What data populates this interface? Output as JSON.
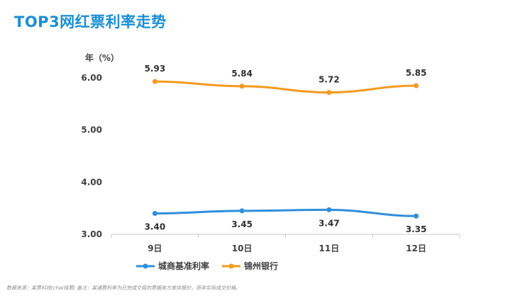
{
  "page": {
    "title": "TOP3网红票利率走势",
    "source": "数据来源：某票科技(chai找票) 备注：某通票利率为已完成交易的票据卖方库存报价，而非实际成交价格。"
  },
  "chart_data": {
    "type": "line",
    "title": "TOP3网红票利率走势",
    "ylabel": "年（%）",
    "xlabel": "",
    "categories": [
      "9日",
      "10日",
      "11日",
      "12日"
    ],
    "ylim": [
      3.0,
      6.0
    ],
    "yticks": [
      "3.00",
      "4.00",
      "5.00",
      "6.00"
    ],
    "grid": false,
    "legend": "bottom",
    "series": [
      {
        "name": "城商基准利率",
        "color": "#2e8fdb",
        "values": [
          3.4,
          3.45,
          3.47,
          3.35
        ],
        "labels": [
          "3.40",
          "3.45",
          "3.47",
          "3.35"
        ]
      },
      {
        "name": "锦州银行",
        "color": "#f39a1e",
        "values": [
          5.93,
          5.84,
          5.72,
          5.85
        ],
        "labels": [
          "5.93",
          "5.84",
          "5.72",
          "5.85"
        ]
      }
    ]
  }
}
